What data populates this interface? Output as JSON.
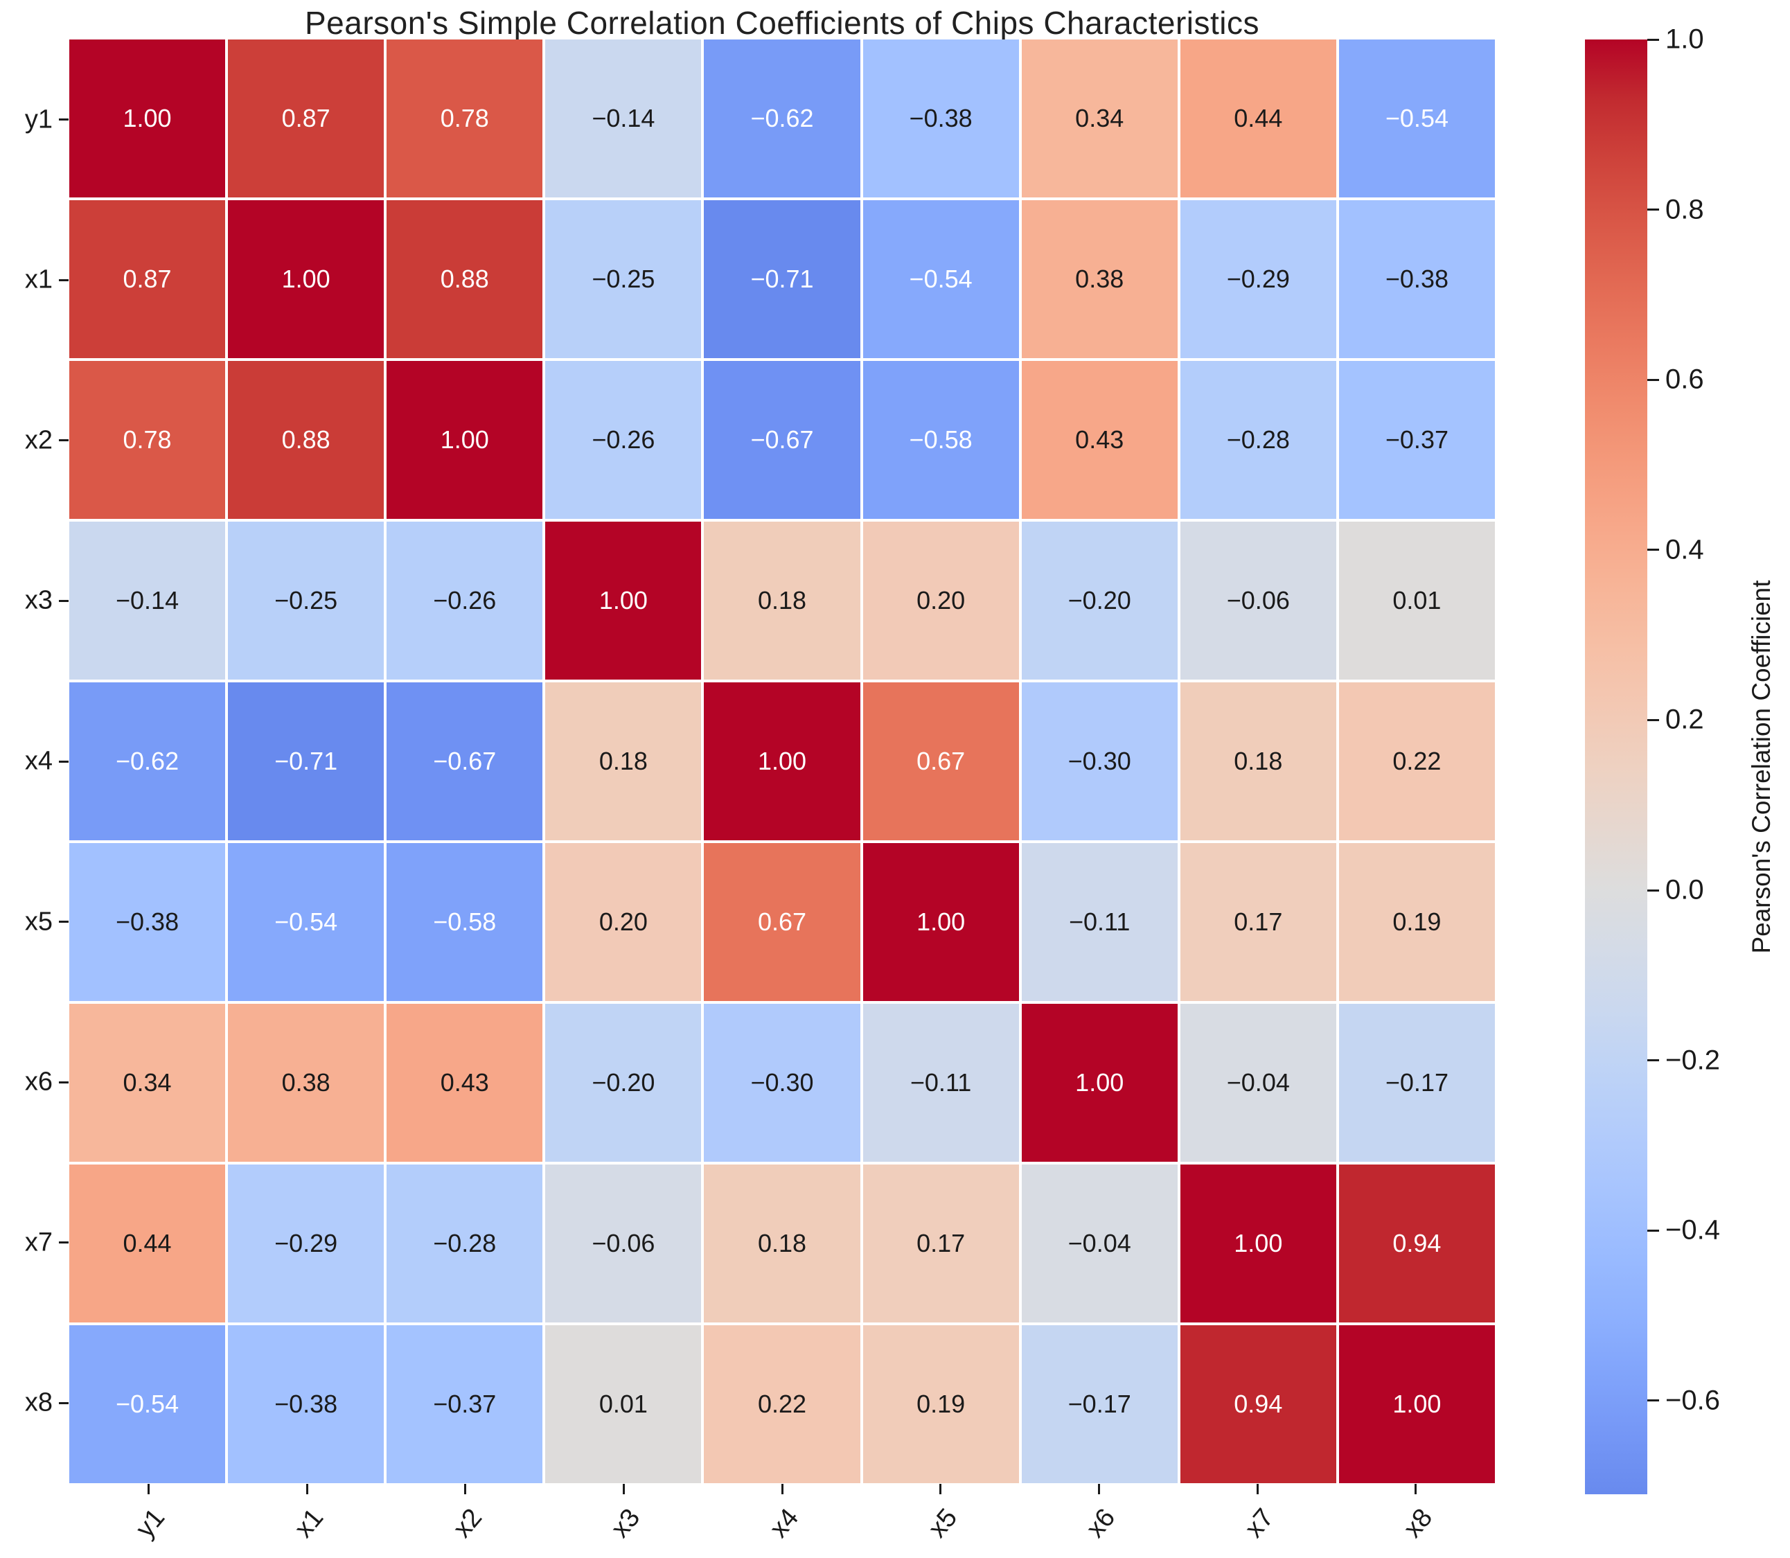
{
  "title": "Pearson's Simple Correlation Coefficients of Chips Characteristics",
  "chart_data": {
    "type": "heatmap",
    "title": "Pearson's Simple Correlation Coefficients of Chips Characteristics",
    "categories": [
      "y1",
      "x1",
      "x2",
      "x3",
      "x4",
      "x5",
      "x6",
      "x7",
      "x8"
    ],
    "matrix": [
      [
        1.0,
        0.87,
        0.78,
        -0.14,
        -0.62,
        -0.38,
        0.34,
        0.44,
        -0.54
      ],
      [
        0.87,
        1.0,
        0.88,
        -0.25,
        -0.71,
        -0.54,
        0.38,
        -0.29,
        -0.38
      ],
      [
        0.78,
        0.88,
        1.0,
        -0.26,
        -0.67,
        -0.58,
        0.43,
        -0.28,
        -0.37
      ],
      [
        -0.14,
        -0.25,
        -0.26,
        1.0,
        0.18,
        0.2,
        -0.2,
        -0.06,
        0.01
      ],
      [
        -0.62,
        -0.71,
        -0.67,
        0.18,
        1.0,
        0.67,
        -0.3,
        0.18,
        0.22
      ],
      [
        -0.38,
        -0.54,
        -0.58,
        0.2,
        0.67,
        1.0,
        -0.11,
        0.17,
        0.19
      ],
      [
        0.34,
        0.38,
        0.43,
        -0.2,
        -0.3,
        -0.11,
        1.0,
        -0.04,
        -0.17
      ],
      [
        0.44,
        -0.29,
        -0.28,
        -0.06,
        0.18,
        0.17,
        -0.04,
        1.0,
        0.94
      ],
      [
        -0.54,
        -0.38,
        -0.37,
        0.01,
        0.22,
        0.19,
        -0.17,
        0.94,
        1.0
      ]
    ],
    "value_format": "two_decimals",
    "colormap": "coolwarm",
    "color_norm": [
      -1,
      1
    ],
    "grid_line_color": "#ffffff",
    "colorbar": {
      "label": "Pearson's Correlation Coefficient",
      "ticks": [
        1.0,
        0.8,
        0.6,
        0.4,
        0.2,
        0.0,
        -0.2,
        -0.4,
        -0.6
      ],
      "range": [
        -0.71,
        1.0
      ]
    },
    "colors": {
      "max_red": "#b40426",
      "mid_gray": "#dddddd",
      "min_blue_shown": "#688aee",
      "tick_text": "#1a1a1a",
      "cell_text_dark": "#1a1a1a",
      "cell_text_light": "#ffffff"
    }
  }
}
